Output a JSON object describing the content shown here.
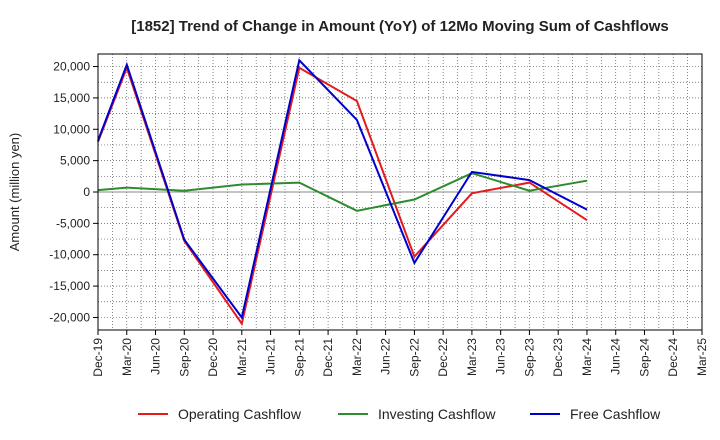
{
  "chart_data": {
    "type": "line",
    "title": "[1852]  Trend of Change in Amount (YoY) of 12Mo Moving Sum of Cashflows",
    "xlabel": "",
    "ylabel": "Amount (million yen)",
    "ylim": [
      -22000,
      22000
    ],
    "yticks": [
      20000,
      15000,
      10000,
      5000,
      0,
      -5000,
      -10000,
      -15000,
      -20000
    ],
    "ytick_labels": [
      "20,000",
      "15,000",
      "10,000",
      "5,000",
      "0",
      "-5,000",
      "-10,000",
      "-15,000",
      "-20,000"
    ],
    "grid": true,
    "legend_position": "bottom",
    "x": [
      "Dec-19",
      "Mar-20",
      "Jun-20",
      "Sep-20",
      "Dec-20",
      "Mar-21",
      "Jun-21",
      "Sep-21",
      "Dec-21",
      "Mar-22",
      "Jun-22",
      "Sep-22",
      "Dec-22",
      "Mar-23",
      "Jun-23",
      "Sep-23",
      "Dec-23",
      "Mar-24",
      "Jun-24",
      "Sep-24",
      "Dec-24",
      "Mar-25"
    ],
    "series": [
      {
        "name": "Operating Cashflow",
        "color": "#e41a1c",
        "values": [
          8000,
          19800,
          null,
          -7800,
          null,
          -21000,
          null,
          19800,
          null,
          14500,
          null,
          -10300,
          null,
          -200,
          null,
          1500,
          null,
          -4500,
          null,
          null,
          null,
          null
        ]
      },
      {
        "name": "Investing Cashflow",
        "color": "#2e8b2e",
        "values": [
          300,
          700,
          null,
          200,
          null,
          1200,
          null,
          1500,
          null,
          -3000,
          null,
          -1200,
          null,
          3000,
          null,
          200,
          null,
          1800,
          null,
          null,
          null,
          null
        ]
      },
      {
        "name": "Free Cashflow",
        "color": "#0000cc",
        "values": [
          8200,
          20300,
          null,
          -7600,
          null,
          -20000,
          null,
          21000,
          null,
          11500,
          null,
          -11300,
          null,
          3200,
          null,
          1900,
          null,
          -2800,
          null,
          null,
          null,
          null
        ]
      }
    ]
  }
}
